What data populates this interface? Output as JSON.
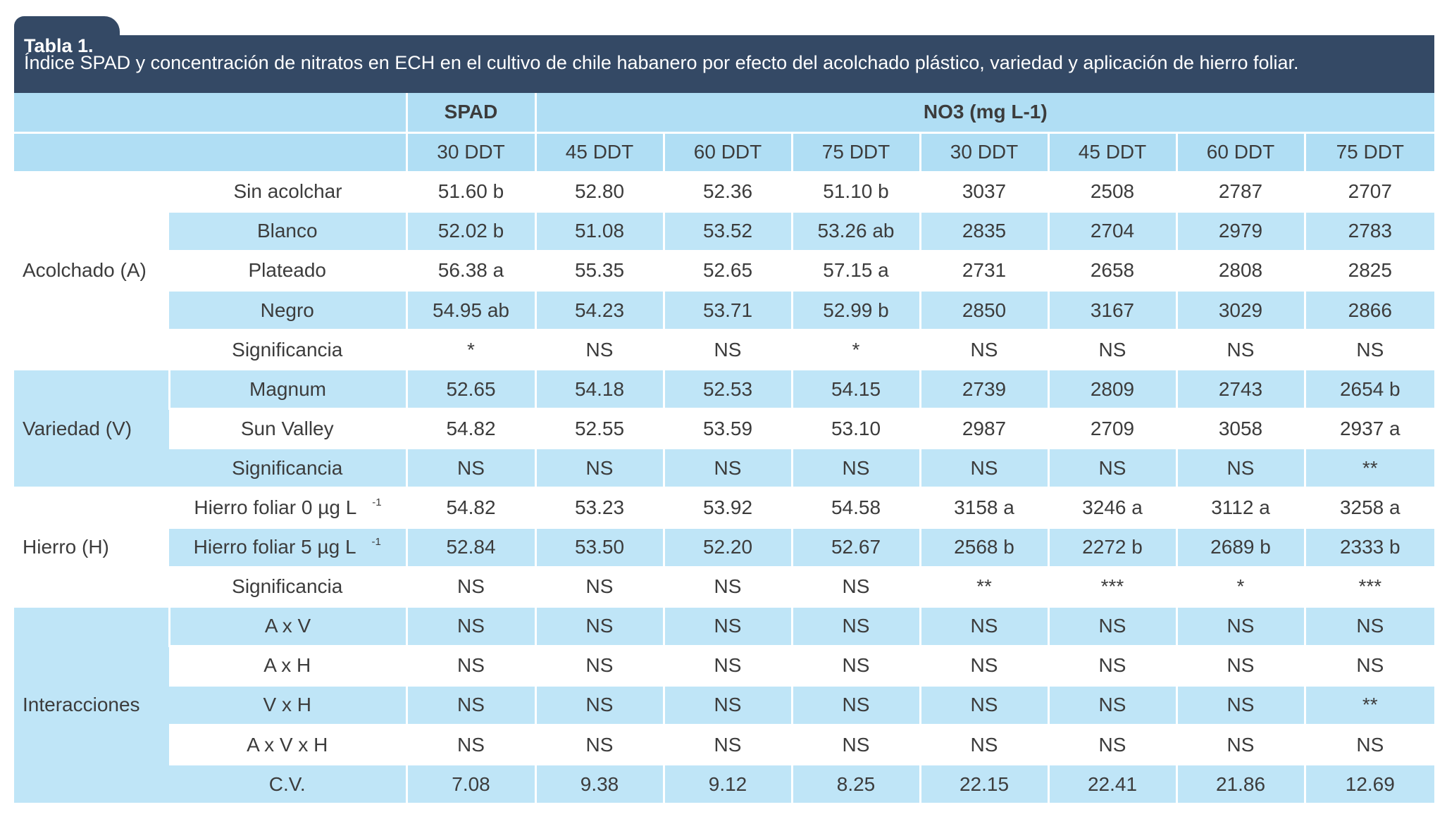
{
  "table_label": "Tabla 1.",
  "caption": "Índice SPAD y concentración de nitratos en ECH en el cultivo de chile habanero por efecto del acolchado plástico, variedad y aplicación de hierro foliar.",
  "header": {
    "spad": "SPAD",
    "no3": "NO3 (mg L-1)",
    "columns": [
      "30 DDT",
      "45 DDT",
      "60 DDT",
      "75 DDT",
      "30 DDT",
      "45 DDT",
      "60 DDT",
      "75 DDT"
    ]
  },
  "groups": {
    "acolchado": "Acolchado (A)",
    "variedad": "Variedad (V)",
    "hierro": "Hierro (H)",
    "interacciones": "Interacciones"
  },
  "rows": [
    {
      "label": "Sin acolchar",
      "values": [
        "51.60 b",
        "52.80",
        "52.36",
        "51.10 b",
        "3037",
        "2508",
        "2787",
        "2707"
      ]
    },
    {
      "label": "Blanco",
      "values": [
        "52.02 b",
        "51.08",
        "53.52",
        "53.26 ab",
        "2835",
        "2704",
        "2979",
        "2783"
      ]
    },
    {
      "label": "Plateado",
      "values": [
        "56.38 a",
        "55.35",
        "52.65",
        "57.15 a",
        "2731",
        "2658",
        "2808",
        "2825"
      ]
    },
    {
      "label": "Negro",
      "values": [
        "54.95 ab",
        "54.23",
        "53.71",
        "52.99 b",
        "2850",
        "3167",
        "3029",
        "2866"
      ]
    },
    {
      "label": "Significancia",
      "values": [
        "*",
        "NS",
        "NS",
        "*",
        "NS",
        "NS",
        "NS",
        "NS"
      ]
    },
    {
      "label": "Magnum",
      "values": [
        "52.65",
        "54.18",
        "52.53",
        "54.15",
        "2739",
        "2809",
        "2743",
        "2654 b"
      ]
    },
    {
      "label": "Sun Valley",
      "values": [
        "54.82",
        "52.55",
        "53.59",
        "53.10",
        "2987",
        "2709",
        "3058",
        "2937 a"
      ]
    },
    {
      "label": "Significancia",
      "values": [
        "NS",
        "NS",
        "NS",
        "NS",
        "NS",
        "NS",
        "NS",
        "**"
      ]
    },
    {
      "label": "Hierro foliar 0 µg L",
      "sup": "-1",
      "values": [
        "54.82",
        "53.23",
        "53.92",
        "54.58",
        "3158 a",
        "3246 a",
        "3112 a",
        "3258 a"
      ]
    },
    {
      "label": "Hierro foliar 5 µg L",
      "sup": "-1",
      "values": [
        "52.84",
        "53.50",
        "52.20",
        "52.67",
        "2568 b",
        "2272 b",
        "2689 b",
        "2333 b"
      ]
    },
    {
      "label": "Significancia",
      "values": [
        "NS",
        "NS",
        "NS",
        "NS",
        "**",
        "***",
        "*",
        "***"
      ]
    },
    {
      "label": "A x V",
      "values": [
        "NS",
        "NS",
        "NS",
        "NS",
        "NS",
        "NS",
        "NS",
        "NS"
      ]
    },
    {
      "label": "A x H",
      "values": [
        "NS",
        "NS",
        "NS",
        "NS",
        "NS",
        "NS",
        "NS",
        "NS"
      ]
    },
    {
      "label": "V x H",
      "values": [
        "NS",
        "NS",
        "NS",
        "NS",
        "NS",
        "NS",
        "NS",
        "**"
      ]
    },
    {
      "label": "A x V x H",
      "values": [
        "NS",
        "NS",
        "NS",
        "NS",
        "NS",
        "NS",
        "NS",
        "NS"
      ]
    },
    {
      "label": "C.V.",
      "values": [
        "7.08",
        "9.38",
        "9.12",
        "8.25",
        "22.15",
        "22.41",
        "21.86",
        "12.69"
      ]
    }
  ],
  "colors": {
    "title_bg": "#344965",
    "header_bg": "#b0def4",
    "band_bg": "#bfe5f7"
  }
}
